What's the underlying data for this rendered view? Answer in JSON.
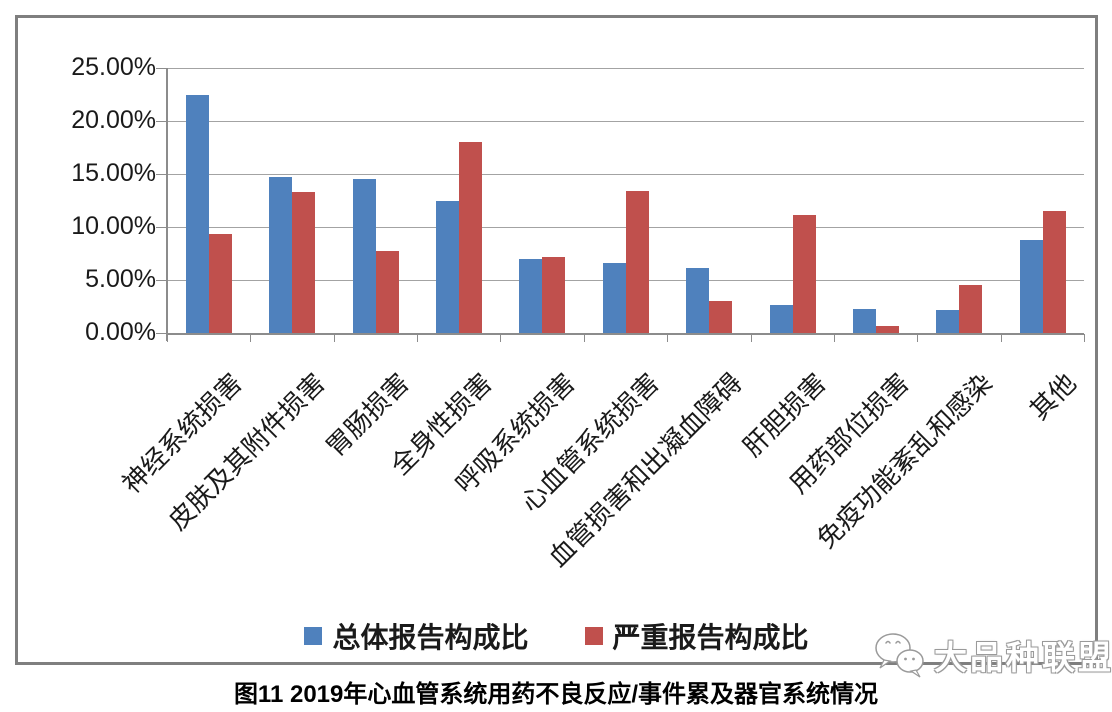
{
  "chart_data": {
    "type": "bar",
    "title": "图11 2019年心血管系统用药不良反应/事件累及器官系统情况",
    "categories": [
      "神经系统损害",
      "皮肤及其附件损害",
      "胃肠损害",
      "全身性损害",
      "呼吸系统损害",
      "心血管系统损害",
      "血管损害和出凝血障碍",
      "肝胆损害",
      "用药部位损害",
      "免疫功能紊乱和感染",
      "其他"
    ],
    "series": [
      {
        "name": "总体报告构成比",
        "color": "#4F81BD",
        "values": [
          22.5,
          14.7,
          14.5,
          12.5,
          7.0,
          6.6,
          6.1,
          2.6,
          2.3,
          2.2,
          8.8
        ]
      },
      {
        "name": "严重报告构成比",
        "color": "#C0504D",
        "values": [
          9.3,
          13.3,
          7.7,
          18.0,
          7.2,
          13.4,
          3.0,
          11.1,
          0.7,
          4.5,
          11.5
        ]
      }
    ],
    "ylim": [
      0,
      25
    ],
    "y_tick_step": 5,
    "y_tick_labels": [
      "25.00%",
      "20.00%",
      "15.00%",
      "10.00%",
      "5.00%",
      "0.00%"
    ],
    "xlabel": "",
    "ylabel": "",
    "grid": true,
    "legend_position": "bottom"
  },
  "caption": "图11 2019年心血管系统用药不良反应/事件累及器官系统情况",
  "watermark": {
    "text": "大品种联盟",
    "icon": "wechat-icon"
  },
  "colors": {
    "bar_blue": "#4F81BD",
    "bar_red": "#C0504D",
    "gridline": "#a3a3a3",
    "axis": "#8c8c8c",
    "frame_border": "#7f7f7f"
  }
}
